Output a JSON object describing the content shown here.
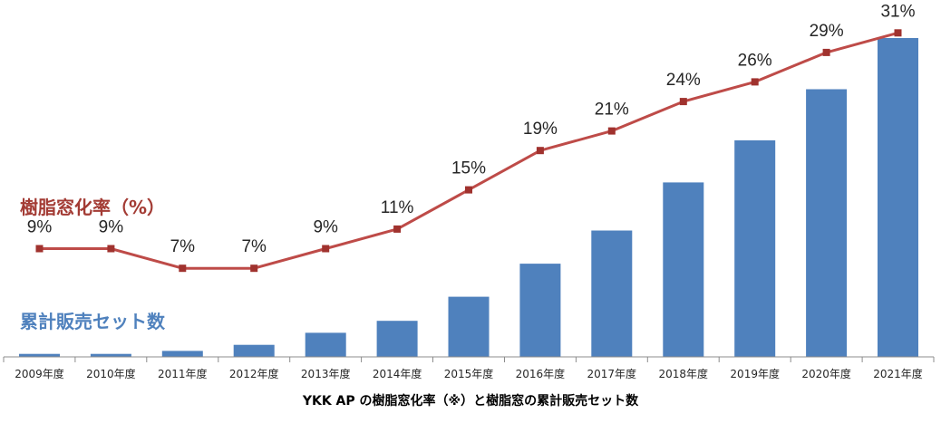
{
  "chart_data": {
    "type": "bar+line",
    "categories": [
      "2009年度",
      "2010年度",
      "2011年度",
      "2012年度",
      "2013年度",
      "2014年度",
      "2015年度",
      "2016年度",
      "2017年度",
      "2018年度",
      "2019年度",
      "2020年度",
      "2021年度"
    ],
    "series": [
      {
        "name": "累計販売セット数",
        "type": "bar",
        "color": "#4f81bd",
        "values": [
          1,
          1,
          2,
          4,
          8,
          12,
          20,
          31,
          42,
          58,
          72,
          89,
          106
        ]
      },
      {
        "name": "樹脂窓化率（%）",
        "type": "line",
        "color": "#be4b48",
        "values": [
          9,
          9,
          7,
          7,
          9,
          11,
          15,
          19,
          21,
          24,
          26,
          29,
          31
        ],
        "labels": [
          "9%",
          "9%",
          "7%",
          "7%",
          "9%",
          "11%",
          "15%",
          "19%",
          "21%",
          "24%",
          "26%",
          "29%",
          "31%"
        ]
      }
    ],
    "caption": "YKK AP の樹脂窓化率（※）と樹脂窓の累計販売セット数",
    "legend": {
      "line_label": "樹脂窓化率（%）",
      "bar_label": "累計販売セット数",
      "line_color": "#a33b34",
      "bar_color": "#4f81bd"
    },
    "grid": false
  }
}
